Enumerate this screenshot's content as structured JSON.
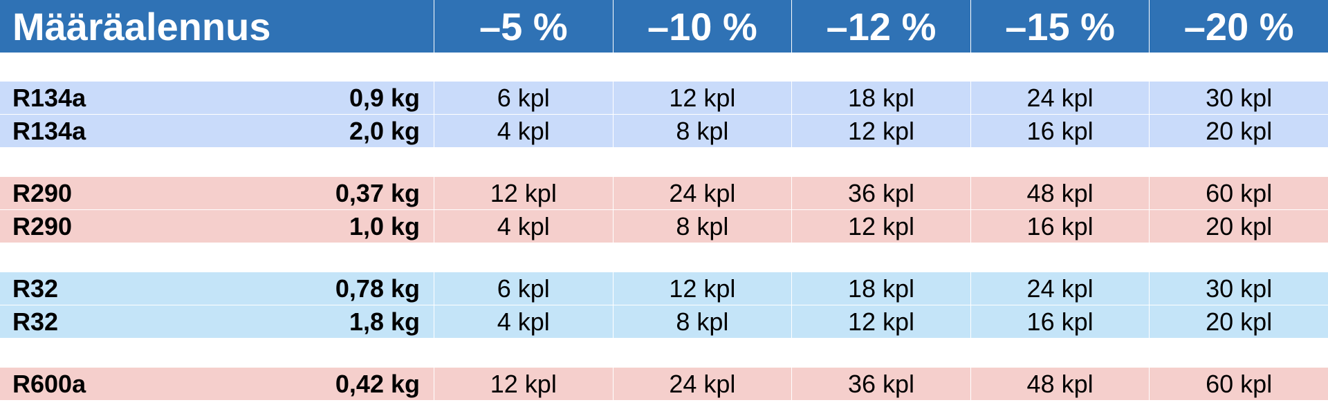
{
  "table": {
    "title": "Määräalennus",
    "columns": [
      "–5 %",
      "–10 %",
      "–12 %",
      "–15 %",
      "–20 %"
    ],
    "groups": [
      {
        "rows": [
          [
            "R134a",
            "0,9 kg",
            "6 kpl",
            "12 kpl",
            "18 kpl",
            "24 kpl",
            "30 kpl"
          ],
          [
            "R134a",
            "2,0 kg",
            "4 kpl",
            "8 kpl",
            "12 kpl",
            "16 kpl",
            "20 kpl"
          ]
        ]
      },
      {
        "rows": [
          [
            "R290",
            "0,37 kg",
            "12 kpl",
            "24 kpl",
            "36 kpl",
            "48 kpl",
            "60 kpl"
          ],
          [
            "R290",
            "1,0 kg",
            "4 kpl",
            "8 kpl",
            "12 kpl",
            "16 kpl",
            "20 kpl"
          ]
        ]
      },
      {
        "rows": [
          [
            "R32",
            "0,78 kg",
            "6 kpl",
            "12 kpl",
            "18 kpl",
            "24 kpl",
            "30 kpl"
          ],
          [
            "R32",
            "1,8 kg",
            "4 kpl",
            "8 kpl",
            "12 kpl",
            "16 kpl",
            "20 kpl"
          ]
        ]
      },
      {
        "rows": [
          [
            "R600a",
            "0,42 kg",
            "12 kpl",
            "24 kpl",
            "36 kpl",
            "48 kpl",
            "60 kpl"
          ]
        ]
      }
    ]
  }
}
